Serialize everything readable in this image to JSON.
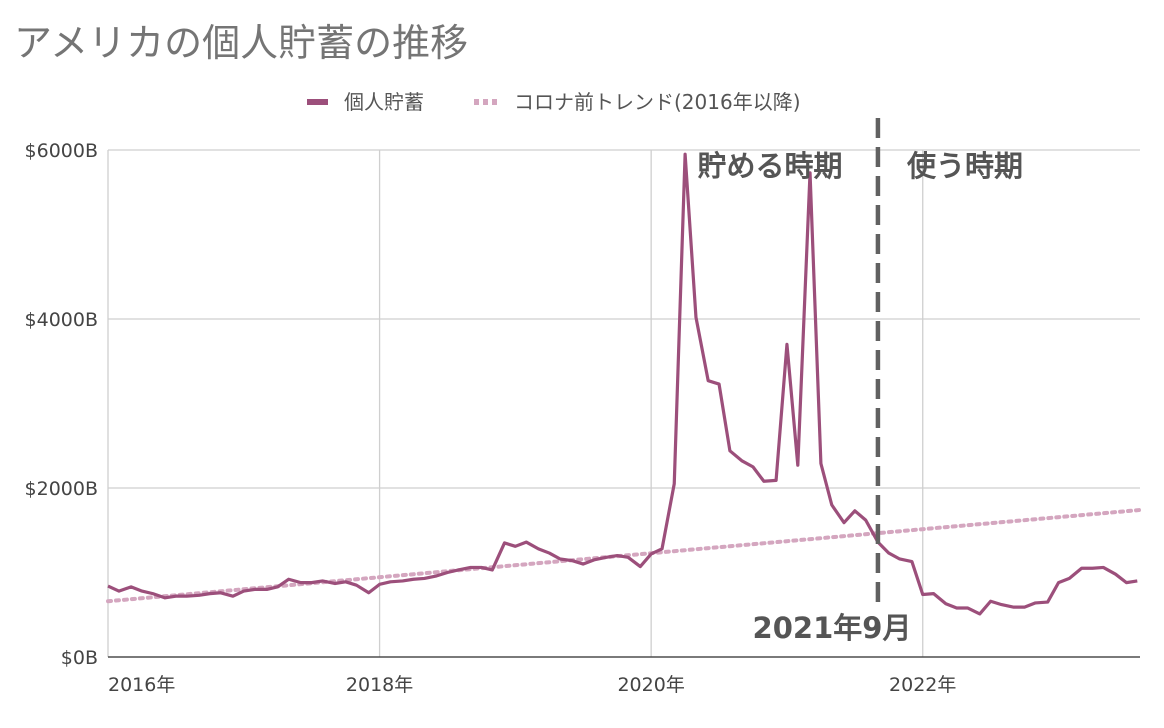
{
  "chart_data": {
    "type": "line",
    "title": "アメリカの個人貯蓄の推移",
    "xlabel": "",
    "ylabel": "",
    "x_tick_labels": [
      "2016年",
      "2018年",
      "2020年",
      "2022年"
    ],
    "x_tick_values": [
      2016,
      2018,
      2020,
      2022
    ],
    "xlim": [
      2016,
      2023.6
    ],
    "y_tick_labels": [
      "$0B",
      "$2000B",
      "$4000B",
      "$6000B"
    ],
    "y_tick_values": [
      0,
      2000,
      4000,
      6000
    ],
    "ylim": [
      0,
      6000
    ],
    "grid": true,
    "legend_position": "top-center",
    "series": [
      {
        "name": "個人貯蓄",
        "color": "#9c4f7b",
        "style": "solid",
        "points": [
          [
            2016.0,
            840
          ],
          [
            2016.08,
            780
          ],
          [
            2016.17,
            830
          ],
          [
            2016.25,
            780
          ],
          [
            2016.33,
            750
          ],
          [
            2016.42,
            700
          ],
          [
            2016.5,
            720
          ],
          [
            2016.58,
            720
          ],
          [
            2016.67,
            730
          ],
          [
            2016.75,
            750
          ],
          [
            2016.83,
            760
          ],
          [
            2016.92,
            720
          ],
          [
            2017.0,
            780
          ],
          [
            2017.08,
            800
          ],
          [
            2017.17,
            800
          ],
          [
            2017.25,
            830
          ],
          [
            2017.33,
            920
          ],
          [
            2017.42,
            880
          ],
          [
            2017.5,
            880
          ],
          [
            2017.58,
            900
          ],
          [
            2017.67,
            870
          ],
          [
            2017.75,
            890
          ],
          [
            2017.83,
            850
          ],
          [
            2017.92,
            760
          ],
          [
            2018.0,
            860
          ],
          [
            2018.08,
            890
          ],
          [
            2018.17,
            900
          ],
          [
            2018.25,
            920
          ],
          [
            2018.33,
            930
          ],
          [
            2018.42,
            960
          ],
          [
            2018.5,
            1000
          ],
          [
            2018.58,
            1030
          ],
          [
            2018.67,
            1060
          ],
          [
            2018.75,
            1060
          ],
          [
            2018.83,
            1030
          ],
          [
            2018.92,
            1350
          ],
          [
            2019.0,
            1310
          ],
          [
            2019.08,
            1360
          ],
          [
            2019.17,
            1280
          ],
          [
            2019.25,
            1230
          ],
          [
            2019.33,
            1160
          ],
          [
            2019.42,
            1140
          ],
          [
            2019.5,
            1100
          ],
          [
            2019.58,
            1150
          ],
          [
            2019.67,
            1180
          ],
          [
            2019.75,
            1200
          ],
          [
            2019.83,
            1180
          ],
          [
            2019.92,
            1070
          ],
          [
            2020.0,
            1220
          ],
          [
            2020.08,
            1280
          ],
          [
            2020.17,
            2050
          ],
          [
            2020.25,
            5950
          ],
          [
            2020.33,
            4020
          ],
          [
            2020.42,
            3270
          ],
          [
            2020.5,
            3230
          ],
          [
            2020.58,
            2440
          ],
          [
            2020.67,
            2320
          ],
          [
            2020.75,
            2250
          ],
          [
            2020.83,
            2080
          ],
          [
            2020.92,
            2090
          ],
          [
            2021.0,
            3700
          ],
          [
            2021.08,
            2270
          ],
          [
            2021.17,
            5730
          ],
          [
            2021.25,
            2290
          ],
          [
            2021.33,
            1800
          ],
          [
            2021.42,
            1590
          ],
          [
            2021.5,
            1730
          ],
          [
            2021.58,
            1620
          ],
          [
            2021.67,
            1360
          ],
          [
            2021.75,
            1230
          ],
          [
            2021.83,
            1160
          ],
          [
            2021.92,
            1130
          ],
          [
            2022.0,
            740
          ],
          [
            2022.08,
            750
          ],
          [
            2022.17,
            630
          ],
          [
            2022.25,
            580
          ],
          [
            2022.33,
            580
          ],
          [
            2022.42,
            510
          ],
          [
            2022.5,
            660
          ],
          [
            2022.58,
            620
          ],
          [
            2022.67,
            590
          ],
          [
            2022.75,
            590
          ],
          [
            2022.83,
            640
          ],
          [
            2022.92,
            650
          ],
          [
            2023.0,
            880
          ],
          [
            2023.08,
            930
          ],
          [
            2023.17,
            1050
          ],
          [
            2023.25,
            1050
          ],
          [
            2023.33,
            1060
          ],
          [
            2023.42,
            980
          ],
          [
            2023.5,
            880
          ],
          [
            2023.58,
            900
          ]
        ]
      },
      {
        "name": "コロナ前トレンド(2016年以降)",
        "color": "#d4a6bf",
        "style": "dotted",
        "points": [
          [
            2016.0,
            660
          ],
          [
            2023.6,
            1740
          ]
        ]
      }
    ],
    "annotations": [
      {
        "text": "貯める時期",
        "x": 2020.8,
        "y": 5800
      },
      {
        "text": "使う時期",
        "x": 2022.3,
        "y": 5800
      },
      {
        "text": "2021年9月",
        "x": 2021.4,
        "y": 300
      }
    ],
    "reference_line": {
      "x": 2021.67,
      "style": "dashed",
      "color": "#616161"
    }
  }
}
